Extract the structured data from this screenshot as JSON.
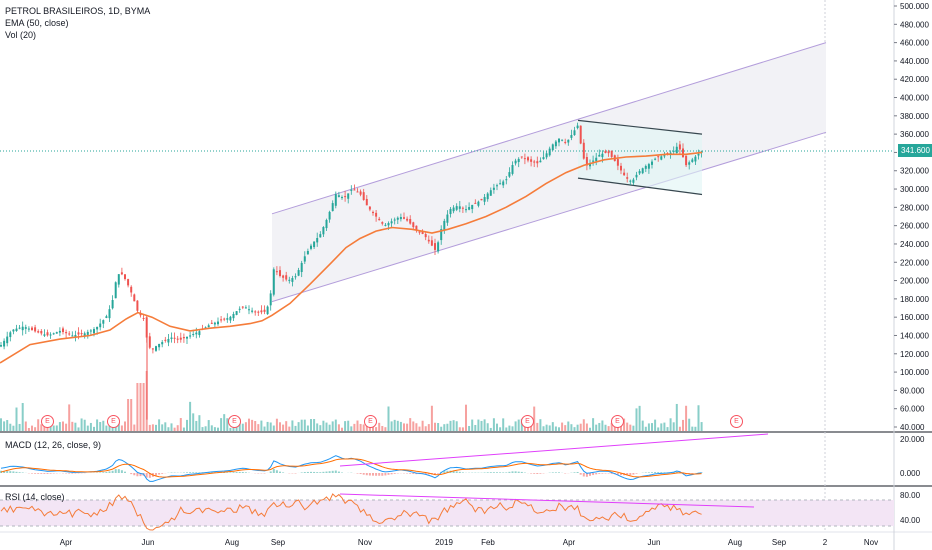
{
  "legend": {
    "main": "PETROL BRASILEIROS, 1D, BYMA",
    "ema": "EMA (50, close)",
    "vol": "Vol (20)",
    "macd": "MACD (12, 26, close, 9)",
    "rsi": "RSI (14, close)"
  },
  "last_price": "341.600",
  "earnings_marker": "E",
  "colors": {
    "up": "#26a69a",
    "down": "#ef5350",
    "ema": "#f57c3a",
    "channel": "#b39ddb",
    "flag": "#37474f",
    "macd_line": "#2196f3",
    "signal_line": "#ff6d00",
    "divergence": "#e040fb",
    "rsi_line": "#f57c3a",
    "rsi_band": "#f3e5f5",
    "price_line": "#26a69a"
  },
  "chart_data": {
    "type": "candlestick",
    "symbol": "PETROL BRASILEIROS",
    "interval": "1D",
    "exchange": "BYMA",
    "x_tick_labels": [
      "Apr",
      "Jun",
      "Aug",
      "Sep",
      "Nov",
      "2019",
      "Feb",
      "Apr",
      "Jun",
      "Aug",
      "Sep",
      "2",
      "Nov"
    ],
    "price_axis": {
      "ylim": [
        40,
        500
      ],
      "ticks": [
        "500.000",
        "480.000",
        "460.000",
        "440.000",
        "420.000",
        "400.000",
        "380.000",
        "360.000",
        "340.000",
        "320.000",
        "300.000",
        "280.000",
        "260.000",
        "240.000",
        "220.000",
        "200.000",
        "180.000",
        "160.000",
        "140.000",
        "120.000",
        "100.000",
        "80.000",
        "60.000",
        "40.000"
      ]
    },
    "macd_axis": {
      "ticks": [
        "20.000",
        "0.000"
      ]
    },
    "rsi_axis": {
      "ticks": [
        "80.00",
        "40.00"
      ]
    },
    "price_path": [
      [
        0,
        128
      ],
      [
        12,
        146
      ],
      [
        24,
        150
      ],
      [
        36,
        144
      ],
      [
        48,
        140
      ],
      [
        60,
        145
      ],
      [
        72,
        140
      ],
      [
        84,
        142
      ],
      [
        96,
        148
      ],
      [
        106,
        160
      ],
      [
        112,
        175
      ],
      [
        116,
        200
      ],
      [
        120,
        210
      ],
      [
        126,
        200
      ],
      [
        132,
        185
      ],
      [
        138,
        165
      ],
      [
        144,
        158
      ],
      [
        148,
        128
      ],
      [
        152,
        125
      ],
      [
        158,
        130
      ],
      [
        164,
        134
      ],
      [
        172,
        138
      ],
      [
        180,
        135
      ],
      [
        190,
        140
      ],
      [
        200,
        145
      ],
      [
        210,
        152
      ],
      [
        220,
        156
      ],
      [
        230,
        160
      ],
      [
        238,
        168
      ],
      [
        244,
        172
      ],
      [
        250,
        168
      ],
      [
        258,
        165
      ],
      [
        266,
        166
      ],
      [
        270,
        180
      ],
      [
        274,
        214
      ],
      [
        280,
        205
      ],
      [
        288,
        200
      ],
      [
        296,
        205
      ],
      [
        304,
        225
      ],
      [
        312,
        240
      ],
      [
        320,
        250
      ],
      [
        328,
        270
      ],
      [
        336,
        295
      ],
      [
        344,
        290
      ],
      [
        352,
        300
      ],
      [
        360,
        295
      ],
      [
        368,
        280
      ],
      [
        376,
        270
      ],
      [
        384,
        260
      ],
      [
        392,
        265
      ],
      [
        400,
        270
      ],
      [
        408,
        265
      ],
      [
        416,
        255
      ],
      [
        424,
        250
      ],
      [
        432,
        238
      ],
      [
        436,
        232
      ],
      [
        442,
        260
      ],
      [
        450,
        278
      ],
      [
        458,
        282
      ],
      [
        466,
        278
      ],
      [
        474,
        284
      ],
      [
        482,
        288
      ],
      [
        490,
        298
      ],
      [
        498,
        305
      ],
      [
        506,
        310
      ],
      [
        514,
        330
      ],
      [
        522,
        335
      ],
      [
        530,
        330
      ],
      [
        538,
        328
      ],
      [
        546,
        338
      ],
      [
        552,
        348
      ],
      [
        560,
        356
      ],
      [
        566,
        350
      ],
      [
        572,
        360
      ],
      [
        578,
        370
      ],
      [
        582,
        340
      ],
      [
        586,
        325
      ],
      [
        592,
        330
      ],
      [
        600,
        338
      ],
      [
        608,
        340
      ],
      [
        614,
        332
      ],
      [
        620,
        322
      ],
      [
        626,
        312
      ],
      [
        632,
        308
      ],
      [
        638,
        318
      ],
      [
        644,
        324
      ],
      [
        650,
        328
      ],
      [
        656,
        334
      ],
      [
        662,
        336
      ],
      [
        668,
        338
      ],
      [
        674,
        342
      ],
      [
        678,
        348
      ],
      [
        682,
        338
      ],
      [
        686,
        326
      ],
      [
        690,
        330
      ],
      [
        694,
        334
      ],
      [
        698,
        338
      ],
      [
        702,
        341.6
      ]
    ],
    "ema_path": [
      [
        0,
        110
      ],
      [
        30,
        130
      ],
      [
        60,
        136
      ],
      [
        90,
        140
      ],
      [
        110,
        146
      ],
      [
        126,
        158
      ],
      [
        138,
        165
      ],
      [
        152,
        160
      ],
      [
        170,
        150
      ],
      [
        190,
        145
      ],
      [
        210,
        148
      ],
      [
        230,
        150
      ],
      [
        250,
        153
      ],
      [
        262,
        156
      ],
      [
        272,
        162
      ],
      [
        290,
        175
      ],
      [
        310,
        196
      ],
      [
        330,
        218
      ],
      [
        346,
        236
      ],
      [
        360,
        246
      ],
      [
        376,
        254
      ],
      [
        392,
        258
      ],
      [
        412,
        256
      ],
      [
        432,
        252
      ],
      [
        448,
        256
      ],
      [
        466,
        262
      ],
      [
        486,
        270
      ],
      [
        506,
        280
      ],
      [
        526,
        292
      ],
      [
        546,
        306
      ],
      [
        566,
        318
      ],
      [
        584,
        326
      ],
      [
        604,
        332
      ],
      [
        626,
        335
      ],
      [
        646,
        336
      ],
      [
        666,
        338
      ],
      [
        686,
        338
      ],
      [
        702,
        340
      ]
    ],
    "channel": {
      "upper": [
        [
          272,
          273
        ],
        [
          826,
          460
        ]
      ],
      "lower": [
        [
          272,
          177
        ],
        [
          826,
          362
        ]
      ]
    },
    "flag": {
      "upper": [
        [
          578,
          375
        ],
        [
          702,
          360
        ]
      ],
      "lower": [
        [
          578,
          312
        ],
        [
          702,
          294
        ]
      ]
    },
    "macd_divergence": [
      [
        340,
        466
      ],
      [
        768,
        434
      ]
    ],
    "rsi_divergence": [
      [
        340,
        494
      ],
      [
        754,
        507
      ]
    ],
    "earnings_markers_x": [
      47,
      113,
      234,
      370,
      527,
      617,
      736
    ]
  }
}
